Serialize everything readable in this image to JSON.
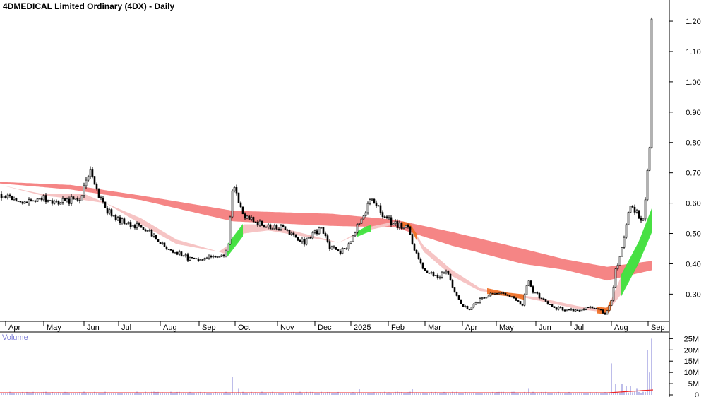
{
  "chart_data": [
    {
      "type": "candlestick",
      "title": "4DMEDICAL Limited Ordinary (4DX) - Daily",
      "x_labels": [
        "Apr",
        "May",
        "Jun",
        "Jul",
        "Aug",
        "Sep",
        "Oct",
        "Nov",
        "Dec",
        "2025",
        "Feb",
        "Mar",
        "Apr",
        "May",
        "Jun",
        "Jul",
        "Aug",
        "Sep"
      ],
      "y_ticks": [
        "0.30",
        "0.40",
        "0.50",
        "0.60",
        "0.70",
        "0.80",
        "0.90",
        "1.00",
        "1.10",
        "1.20"
      ],
      "y_range": [
        0.21,
        1.27
      ],
      "price_path": [
        [
          0,
          0.63
        ],
        [
          20,
          0.61
        ],
        [
          40,
          0.6
        ],
        [
          60,
          0.62
        ],
        [
          80,
          0.6
        ],
        [
          100,
          0.61
        ],
        [
          115,
          0.62
        ],
        [
          128,
          0.7
        ],
        [
          140,
          0.62
        ],
        [
          150,
          0.58
        ],
        [
          165,
          0.55
        ],
        [
          185,
          0.53
        ],
        [
          210,
          0.51
        ],
        [
          225,
          0.47
        ],
        [
          245,
          0.44
        ],
        [
          265,
          0.42
        ],
        [
          290,
          0.415
        ],
        [
          310,
          0.42
        ],
        [
          322,
          0.44
        ],
        [
          330,
          0.66
        ],
        [
          338,
          0.6
        ],
        [
          345,
          0.56
        ],
        [
          360,
          0.54
        ],
        [
          380,
          0.52
        ],
        [
          400,
          0.52
        ],
        [
          415,
          0.49
        ],
        [
          430,
          0.47
        ],
        [
          445,
          0.5
        ],
        [
          455,
          0.52
        ],
        [
          465,
          0.46
        ],
        [
          480,
          0.44
        ],
        [
          495,
          0.46
        ],
        [
          505,
          0.52
        ],
        [
          515,
          0.56
        ],
        [
          525,
          0.61
        ],
        [
          535,
          0.6
        ],
        [
          545,
          0.55
        ],
        [
          560,
          0.53
        ],
        [
          570,
          0.52
        ],
        [
          578,
          0.53
        ],
        [
          585,
          0.46
        ],
        [
          595,
          0.4
        ],
        [
          605,
          0.37
        ],
        [
          620,
          0.36
        ],
        [
          635,
          0.37
        ],
        [
          645,
          0.3
        ],
        [
          655,
          0.26
        ],
        [
          665,
          0.25
        ],
        [
          680,
          0.28
        ],
        [
          695,
          0.3
        ],
        [
          710,
          0.3
        ],
        [
          725,
          0.29
        ],
        [
          740,
          0.26
        ],
        [
          748,
          0.35
        ],
        [
          755,
          0.31
        ],
        [
          770,
          0.28
        ],
        [
          785,
          0.255
        ],
        [
          800,
          0.25
        ],
        [
          815,
          0.245
        ],
        [
          830,
          0.255
        ],
        [
          845,
          0.255
        ],
        [
          858,
          0.235
        ],
        [
          866,
          0.28
        ],
        [
          872,
          0.38
        ],
        [
          880,
          0.44
        ],
        [
          888,
          0.55
        ],
        [
          894,
          0.6
        ],
        [
          902,
          0.57
        ],
        [
          910,
          0.52
        ],
        [
          917,
          0.7
        ],
        [
          920,
          0.78
        ],
        [
          923,
          1.2
        ]
      ],
      "ma_long_upper": [
        [
          0,
          0.67
        ],
        [
          100,
          0.66
        ],
        [
          200,
          0.625
        ],
        [
          330,
          0.575
        ],
        [
          470,
          0.565
        ],
        [
          560,
          0.545
        ],
        [
          640,
          0.505
        ],
        [
          740,
          0.45
        ],
        [
          800,
          0.415
        ],
        [
          860,
          0.39
        ],
        [
          925,
          0.41
        ]
      ],
      "ma_long_lower": [
        [
          0,
          0.665
        ],
        [
          100,
          0.645
        ],
        [
          200,
          0.61
        ],
        [
          330,
          0.54
        ],
        [
          470,
          0.525
        ],
        [
          560,
          0.52
        ],
        [
          640,
          0.46
        ],
        [
          740,
          0.4
        ],
        [
          800,
          0.38
        ],
        [
          860,
          0.345
        ],
        [
          925,
          0.38
        ]
      ],
      "ma_short_upper": [
        [
          0,
          0.66
        ],
        [
          60,
          0.63
        ],
        [
          120,
          0.63
        ],
        [
          150,
          0.6
        ],
        [
          200,
          0.55
        ],
        [
          250,
          0.48
        ],
        [
          310,
          0.44
        ],
        [
          322,
          0.46
        ],
        [
          345,
          0.53
        ],
        [
          380,
          0.53
        ],
        [
          430,
          0.5
        ],
        [
          480,
          0.47
        ],
        [
          520,
          0.52
        ],
        [
          560,
          0.54
        ],
        [
          580,
          0.53
        ],
        [
          600,
          0.46
        ],
        [
          640,
          0.38
        ],
        [
          680,
          0.32
        ],
        [
          720,
          0.3
        ],
        [
          760,
          0.29
        ],
        [
          820,
          0.26
        ],
        [
          860,
          0.25
        ],
        [
          880,
          0.36
        ],
        [
          905,
          0.47
        ],
        [
          925,
          0.59
        ]
      ],
      "ma_short_lower": [
        [
          0,
          0.66
        ],
        [
          60,
          0.625
        ],
        [
          120,
          0.61
        ],
        [
          150,
          0.6
        ],
        [
          200,
          0.53
        ],
        [
          250,
          0.465
        ],
        [
          310,
          0.44
        ],
        [
          322,
          0.43
        ],
        [
          345,
          0.5
        ],
        [
          380,
          0.51
        ],
        [
          430,
          0.49
        ],
        [
          480,
          0.47
        ],
        [
          520,
          0.51
        ],
        [
          560,
          0.53
        ],
        [
          580,
          0.53
        ],
        [
          600,
          0.44
        ],
        [
          640,
          0.36
        ],
        [
          680,
          0.31
        ],
        [
          720,
          0.3
        ],
        [
          760,
          0.28
        ],
        [
          820,
          0.25
        ],
        [
          860,
          0.24
        ],
        [
          880,
          0.3
        ],
        [
          905,
          0.41
        ],
        [
          925,
          0.52
        ]
      ],
      "colors": {
        "up_band": "#35e335",
        "down_band": "#f6c4c4",
        "long_band": "#f58585",
        "cross": "#ee6a1e",
        "candle": "#000000"
      }
    },
    {
      "type": "bar",
      "title": "Volume",
      "y_ticks": [
        "0",
        "5M",
        "10M",
        "15M",
        "20M",
        "25M"
      ],
      "y_range": [
        0,
        27
      ],
      "baseline": 0.6,
      "spikes": [
        [
          330,
          8
        ],
        [
          338,
          3
        ],
        [
          510,
          2.5
        ],
        [
          585,
          2.5
        ],
        [
          748,
          3
        ],
        [
          866,
          14
        ],
        [
          872,
          5
        ],
        [
          880,
          5
        ],
        [
          888,
          4
        ],
        [
          894,
          4
        ],
        [
          902,
          3
        ],
        [
          917,
          20
        ],
        [
          920,
          10
        ],
        [
          923,
          25
        ]
      ],
      "colors": {
        "bar": "#7b7bd6",
        "ma": "#ee2222"
      }
    }
  ]
}
